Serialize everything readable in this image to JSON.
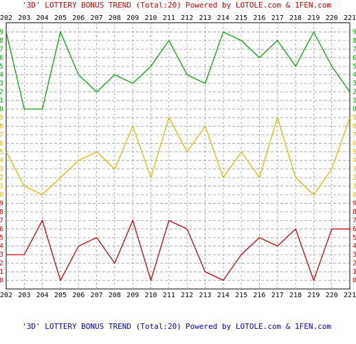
{
  "header": {
    "title": "'3D' LOTTERY BONUS TREND (Total:20)",
    "powered": "Powered by LOTOLE.com & 1FEN.com"
  },
  "footer": {
    "title": "'3D' LOTTERY BONUS TREND (Total:20)",
    "powered": "Powered by LOTOLE.com & 1FEN.com"
  },
  "colors": {
    "title": "#cc0000",
    "title_footer": "#0000cc",
    "green": "#00aa00",
    "yellow": "#e8b800",
    "red": "#cc0000",
    "axis": "#000000",
    "grid": "#999999",
    "tick_labels": "#000000"
  },
  "chart_data": {
    "type": "line",
    "title": "'3D' LOTTERY BONUS TREND (Total:20)",
    "x": [
      "202",
      "203",
      "204",
      "205",
      "206",
      "207",
      "208",
      "209",
      "210",
      "211",
      "212",
      "213",
      "214",
      "215",
      "216",
      "217",
      "218",
      "219",
      "220",
      "221"
    ],
    "y_ticks": [
      "0",
      "1",
      "2",
      "3",
      "4",
      "5",
      "6",
      "7",
      "8",
      "9"
    ],
    "ylim": [
      0,
      9
    ],
    "grid": true,
    "panels": [
      {
        "position": "top",
        "color": "green",
        "values": [
          9,
          0,
          0,
          9,
          4,
          2,
          4,
          3,
          5,
          8,
          4,
          3,
          9,
          8,
          6,
          8,
          5,
          9,
          5,
          2
        ]
      },
      {
        "position": "middle",
        "color": "yellow",
        "values": [
          5,
          1,
          0,
          2,
          4,
          5,
          3,
          8,
          2,
          9,
          5,
          8,
          2,
          5,
          2,
          9,
          2,
          0,
          3,
          9
        ]
      },
      {
        "position": "bottom",
        "color": "red",
        "values": [
          3,
          3,
          7,
          0,
          4,
          5,
          2,
          7,
          0,
          7,
          6,
          1,
          0,
          3,
          5,
          4,
          6,
          0,
          6,
          6
        ]
      }
    ]
  }
}
